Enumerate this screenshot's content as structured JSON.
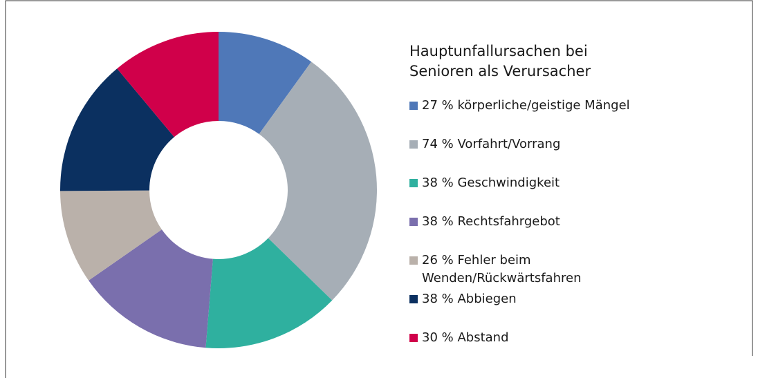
{
  "chart_data": {
    "type": "donut",
    "title": "Hauptunfallursachen bei Senioren als Verursacher",
    "categories": [
      "körperliche/geistige Mängel",
      "Vorfahrt/Vorrang",
      "Geschwindigkeit",
      "Rechtsfahrgebot",
      "Fehler beim\nWenden/Rückwärtsfahren",
      "Abbiegen",
      "Abstand"
    ],
    "values": [
      27,
      74,
      38,
      38,
      26,
      38,
      30
    ],
    "value_labels": [
      "27 %",
      "74 %",
      "38 %",
      "38 %",
      "26 %",
      "38 %",
      "30 %"
    ],
    "colors": [
      "#4f78b8",
      "#a6aeb6",
      "#2fb09f",
      "#7a6fad",
      "#bab1aa",
      "#0b3060",
      "#d0004a"
    ]
  }
}
